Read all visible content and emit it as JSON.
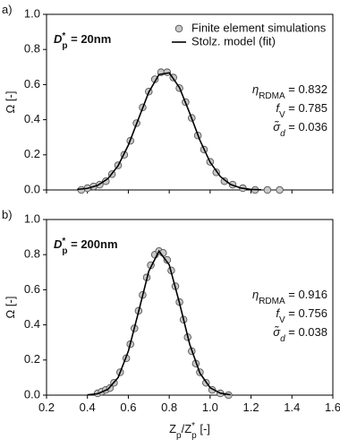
{
  "chart_data": [
    {
      "type": "line",
      "panel_label": "a)",
      "size_label": {
        "segments": [
          {
            "text": "D",
            "style": "bold-italic"
          },
          {
            "text": "*",
            "pos": "sup",
            "style": "bold"
          },
          {
            "text": "p",
            "pos": "sub",
            "style": "bold",
            "stack": true
          },
          {
            "text": " = 20nm",
            "style": "bold"
          }
        ]
      },
      "annotations": [
        {
          "segments": [
            {
              "text": "η",
              "style": "italic"
            },
            {
              "text": "RDMA",
              "pos": "sub"
            },
            {
              "text": " = 0.832"
            }
          ]
        },
        {
          "segments": [
            {
              "text": "f",
              "style": "italic"
            },
            {
              "text": "V",
              "pos": "sub"
            },
            {
              "text": " = 0.785"
            }
          ]
        },
        {
          "segments": [
            {
              "text": "σ̃",
              "style": "italic"
            },
            {
              "text": "d",
              "pos": "sub",
              "style": "italic"
            },
            {
              "text": " = 0.036"
            }
          ]
        }
      ],
      "ylabel": "Ω [-]",
      "xlim": [
        0.2,
        1.6
      ],
      "xticks": [
        0.2,
        0.4,
        0.6,
        0.8,
        {
          "value": 1.0,
          "label": "1.0"
        },
        1.2,
        1.4,
        1.6
      ],
      "show_xtick_labels": false,
      "ylim": [
        0,
        1
      ],
      "yticks": [
        {
          "value": 0,
          "label": "0.0"
        },
        0.2,
        0.4,
        0.6,
        0.8,
        {
          "value": 1,
          "label": "1.0"
        }
      ],
      "legend": "upper right",
      "series": [
        {
          "name": "Finite element simulations",
          "type": "scatter",
          "color": "#c8c8c8",
          "x": [
            0.37,
            0.4,
            0.43,
            0.46,
            0.49,
            0.52,
            0.55,
            0.58,
            0.61,
            0.64,
            0.67,
            0.7,
            0.73,
            0.76,
            0.79,
            0.82,
            0.85,
            0.88,
            0.91,
            0.94,
            0.97,
            1.0,
            1.03,
            1.07,
            1.11,
            1.16,
            1.22,
            1.28,
            1.34
          ],
          "values": [
            0.0,
            0.01,
            0.02,
            0.03,
            0.05,
            0.09,
            0.14,
            0.2,
            0.28,
            0.38,
            0.47,
            0.56,
            0.63,
            0.67,
            0.67,
            0.64,
            0.58,
            0.5,
            0.41,
            0.31,
            0.23,
            0.16,
            0.1,
            0.05,
            0.03,
            0.01,
            0.0,
            0.0,
            0.0
          ]
        },
        {
          "name": "Stolz. model (fit)",
          "type": "line",
          "color": "#000000",
          "x": [
            0.35,
            0.4,
            0.45,
            0.5,
            0.55,
            0.6,
            0.65,
            0.7,
            0.75,
            0.8,
            0.85,
            0.9,
            0.95,
            1.0,
            1.05,
            1.1,
            1.15,
            1.2,
            1.25
          ],
          "values": [
            0.003,
            0.009,
            0.026,
            0.064,
            0.138,
            0.255,
            0.406,
            0.557,
            0.657,
            0.667,
            0.583,
            0.438,
            0.283,
            0.158,
            0.076,
            0.031,
            0.011,
            0.003,
            0.001
          ]
        }
      ]
    },
    {
      "type": "line",
      "panel_label": "b)",
      "size_label": {
        "segments": [
          {
            "text": "D",
            "style": "bold-italic"
          },
          {
            "text": "*",
            "pos": "sup",
            "style": "bold"
          },
          {
            "text": "p",
            "pos": "sub",
            "style": "bold",
            "stack": true
          },
          {
            "text": " = 200nm",
            "style": "bold"
          }
        ]
      },
      "annotations": [
        {
          "segments": [
            {
              "text": "η",
              "style": "italic"
            },
            {
              "text": "RDMA",
              "pos": "sub"
            },
            {
              "text": " = 0.916"
            }
          ]
        },
        {
          "segments": [
            {
              "text": "f",
              "style": "italic"
            },
            {
              "text": "V",
              "pos": "sub"
            },
            {
              "text": " = 0.756"
            }
          ]
        },
        {
          "segments": [
            {
              "text": "σ̃",
              "style": "italic"
            },
            {
              "text": "d",
              "pos": "sub",
              "style": "italic"
            },
            {
              "text": " = 0.038"
            }
          ]
        }
      ],
      "ylabel": "Ω [-]",
      "xlabel": {
        "segments": [
          {
            "text": "Z"
          },
          {
            "text": "p",
            "pos": "sub"
          },
          {
            "text": "/Z"
          },
          {
            "text": "*",
            "pos": "sup"
          },
          {
            "text": "p",
            "pos": "sub",
            "stack": true
          },
          {
            "text": " [-]"
          }
        ]
      },
      "xlim": [
        0.2,
        1.6
      ],
      "xticks": [
        0.2,
        0.4,
        0.6,
        0.8,
        {
          "value": 1.0,
          "label": "1.0"
        },
        1.2,
        1.4,
        1.6
      ],
      "show_xtick_labels": true,
      "ylim": [
        0,
        1
      ],
      "yticks": [
        {
          "value": 0,
          "label": "0.0"
        },
        0.2,
        0.4,
        0.6,
        0.8,
        {
          "value": 1,
          "label": "1.0"
        }
      ],
      "series": [
        {
          "type": "scatter",
          "color": "#c8c8c8",
          "x": [
            0.45,
            0.47,
            0.49,
            0.51,
            0.53,
            0.56,
            0.59,
            0.61,
            0.63,
            0.65,
            0.67,
            0.69,
            0.71,
            0.73,
            0.75,
            0.77,
            0.79,
            0.81,
            0.83,
            0.85,
            0.87,
            0.89,
            0.91,
            0.93,
            0.95,
            0.98,
            1.01,
            1.05,
            1.09
          ],
          "values": [
            0.01,
            0.02,
            0.03,
            0.04,
            0.07,
            0.13,
            0.21,
            0.29,
            0.38,
            0.48,
            0.57,
            0.67,
            0.74,
            0.8,
            0.82,
            0.81,
            0.77,
            0.71,
            0.62,
            0.53,
            0.43,
            0.33,
            0.25,
            0.18,
            0.13,
            0.07,
            0.03,
            0.01,
            0.0
          ]
        },
        {
          "type": "line",
          "color": "#000000",
          "x": [
            0.4,
            0.45,
            0.5,
            0.55,
            0.6,
            0.65,
            0.7,
            0.75,
            0.8,
            0.85,
            0.9,
            0.95,
            1.0,
            1.05,
            1.1
          ],
          "values": [
            0.002,
            0.008,
            0.033,
            0.1,
            0.25,
            0.475,
            0.706,
            0.82,
            0.742,
            0.525,
            0.29,
            0.125,
            0.042,
            0.011,
            0.002
          ]
        }
      ]
    }
  ]
}
